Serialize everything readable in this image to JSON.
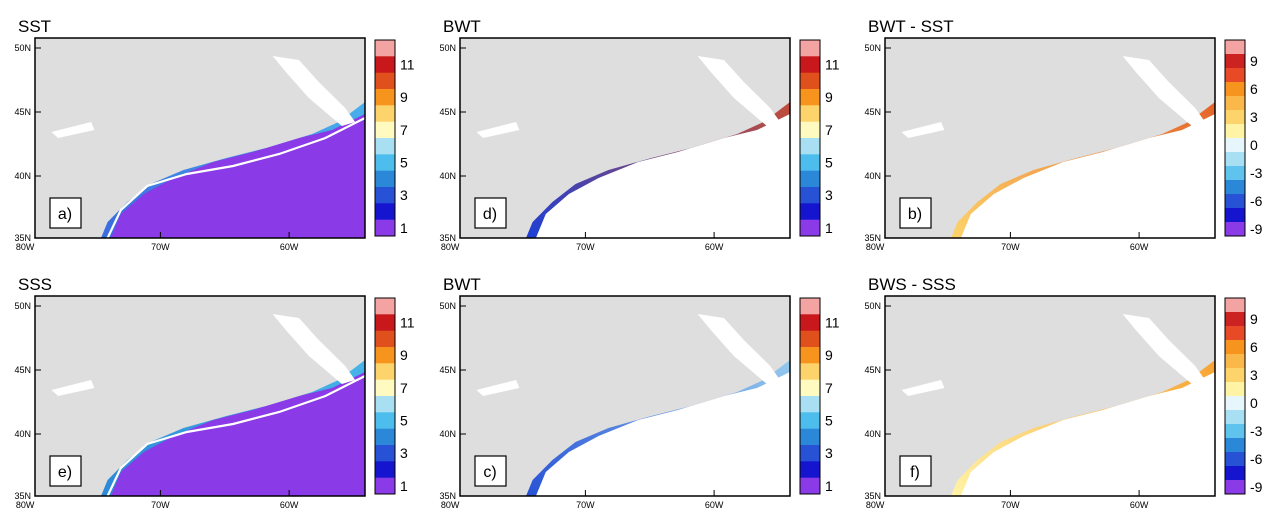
{
  "panels": [
    {
      "title": "SST",
      "label": "a)",
      "legend": "seq",
      "x_ticks": [
        "80W",
        "70W",
        "60W"
      ],
      "y_ticks": [
        "50N",
        "45N",
        "40N",
        "35N"
      ]
    },
    {
      "title": "BWT",
      "label": "d)",
      "legend": "seq",
      "x_ticks": [
        "80W",
        "70W",
        "60W"
      ],
      "y_ticks": [
        "50N",
        "45N",
        "40N",
        "35N"
      ]
    },
    {
      "title": "BWT - SST",
      "label": "b)",
      "legend": "div",
      "x_ticks": [
        "80W",
        "70W",
        "60W"
      ],
      "y_ticks": [
        "50N",
        "45N",
        "40N",
        "35N"
      ]
    },
    {
      "title": "SSS",
      "label": "e)",
      "legend": "seq",
      "x_ticks": [
        "80W",
        "70W",
        "60W"
      ],
      "y_ticks": [
        "50N",
        "45N",
        "40N",
        "35N"
      ]
    },
    {
      "title": "BWT",
      "label": "c)",
      "legend": "seq",
      "x_ticks": [
        "80W",
        "70W",
        "60W"
      ],
      "y_ticks": [
        "50N",
        "45N",
        "40N",
        "35N"
      ]
    },
    {
      "title": "BWS - SSS",
      "label": "f)",
      "legend": "div",
      "x_ticks": [
        "80W",
        "70W",
        "60W"
      ],
      "y_ticks": [
        "50N",
        "45N",
        "40N",
        "35N"
      ]
    }
  ],
  "legends": {
    "seq": {
      "labels": [
        "11",
        "9",
        "7",
        "5",
        "3",
        "1"
      ],
      "colors": [
        "#f4a3a3",
        "#c8181b",
        "#e0501c",
        "#f7941e",
        "#fdd36b",
        "#fffac0",
        "#a8dff2",
        "#4cbdec",
        "#2b88d8",
        "#2752d6",
        "#1515d0",
        "#8a3ae6"
      ]
    },
    "div": {
      "labels": [
        "9",
        "6",
        "3",
        "0",
        "-3",
        "-6",
        "-9"
      ],
      "colors": [
        "#f4a3a3",
        "#cc2222",
        "#e84a28",
        "#f7941e",
        "#fbb84a",
        "#fdd36b",
        "#fff3a6",
        "#e6f6fb",
        "#a8dff2",
        "#5fc3ee",
        "#2b88d8",
        "#2752d6",
        "#1515d0",
        "#8a3ae6"
      ]
    }
  }
}
